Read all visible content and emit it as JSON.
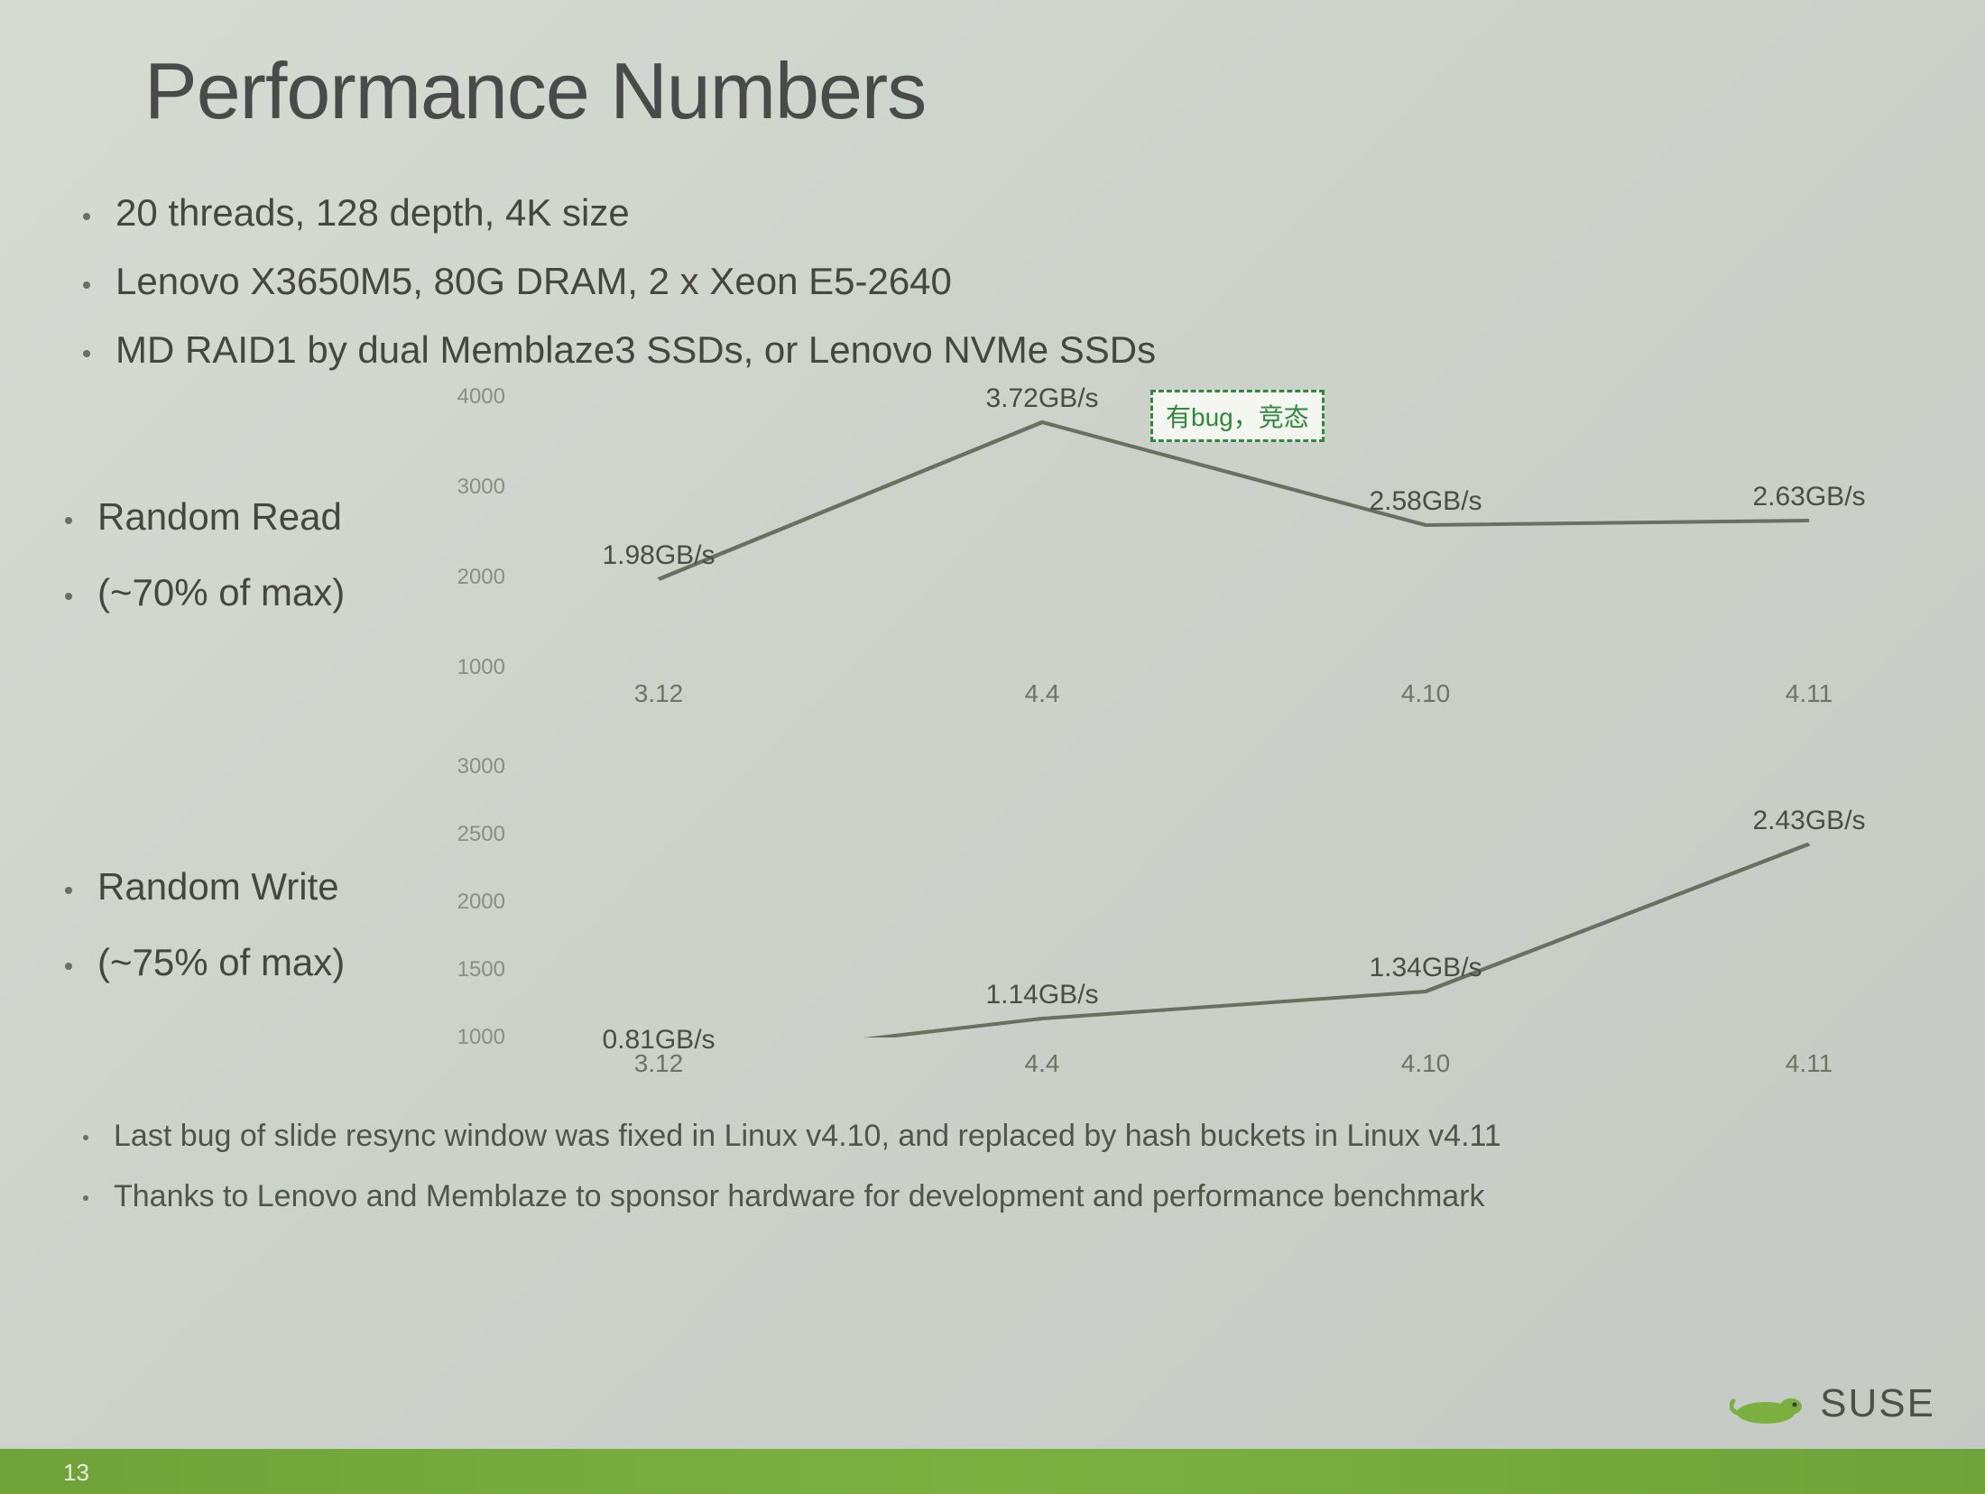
{
  "slide": {
    "title": "Performance Numbers",
    "page_number": "13",
    "top_bullets": [
      "20 threads, 128 depth, 4K size",
      "Lenovo X3650M5, 80G DRAM, 2 x Xeon E5-2640",
      "MD RAID1 by dual Memblaze3 SSDs, or Lenovo NVMe SSDs"
    ],
    "footer_bullets": [
      "Last bug of slide resync window was fixed in Linux v4.10, and replaced by hash buckets in Linux v4.11",
      "Thanks to Lenovo and Memblaze to sponsor hardware for development and performance benchmark"
    ],
    "logo_text": "SUSE",
    "annotation_text": "有bug，竞态"
  },
  "charts": {
    "read": {
      "type": "line",
      "left_labels": [
        "Random Read",
        "(~70% of max)"
      ],
      "categories": [
        "3.12",
        "4.4",
        "4.10",
        "4.11"
      ],
      "labels": [
        "1.98GB/s",
        "3.72GB/s",
        "2.58GB/s",
        "2.63GB/s"
      ],
      "values": [
        1.98,
        3.72,
        2.58,
        2.63
      ],
      "ylim": [
        1000,
        4000
      ],
      "yticks": [
        1000,
        2000,
        3000,
        4000
      ],
      "ytick_labels": [
        "1000",
        "2000",
        "3000",
        "4000"
      ],
      "line_color": "#6a6f60",
      "line_width": 4,
      "label_fontsize": 30,
      "tick_fontsize": 24,
      "annotation_at_index": 1
    },
    "write": {
      "type": "line",
      "left_labels": [
        "Random Write",
        "(~75% of max)"
      ],
      "categories": [
        "3.12",
        "4.4",
        "4.10",
        "4.11"
      ],
      "labels": [
        "0.81GB/s",
        "1.14GB/s",
        "1.34GB/s",
        "2.43GB/s"
      ],
      "values": [
        0.81,
        1.14,
        1.34,
        2.43
      ],
      "ylim": [
        1000,
        3000
      ],
      "yticks": [
        1000,
        1500,
        2000,
        2500,
        3000
      ],
      "ytick_labels": [
        "1000",
        "1500",
        "2000",
        "2500",
        "3000"
      ],
      "line_color": "#6a6f60",
      "line_width": 4,
      "label_fontsize": 30,
      "tick_fontsize": 24
    }
  },
  "colors": {
    "background_grad_from": "#d8dbd4",
    "background_grad_to": "#c5cbc4",
    "title_color": "#4a4a4a",
    "text_color": "#45463f",
    "tick_color": "#8a8d80",
    "footer_bar": "#7bb041",
    "annotation_border": "#2e8a3a",
    "annotation_bg": "#f4f7ef"
  }
}
